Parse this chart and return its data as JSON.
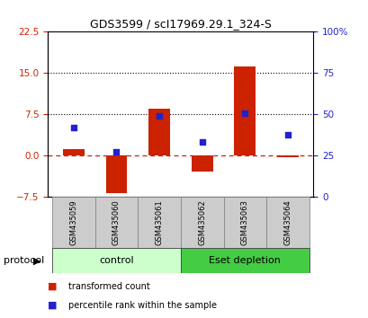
{
  "title": "GDS3599 / scI17969.29.1_324-S",
  "categories": [
    "GSM435059",
    "GSM435060",
    "GSM435061",
    "GSM435062",
    "GSM435063",
    "GSM435064"
  ],
  "transformed_counts": [
    1.2,
    -6.8,
    8.5,
    -2.8,
    16.2,
    -0.2
  ],
  "percentile_ranks": [
    5.2,
    0.8,
    7.2,
    2.5,
    7.8,
    3.8
  ],
  "left_ylim": [
    -7.5,
    22.5
  ],
  "right_ylim": [
    0,
    100
  ],
  "left_yticks": [
    -7.5,
    0,
    7.5,
    15,
    22.5
  ],
  "right_yticks": [
    0,
    25,
    50,
    75,
    100
  ],
  "right_yticklabels": [
    "0",
    "25",
    "50",
    "75",
    "100%"
  ],
  "hlines": [
    7.5,
    15.0
  ],
  "dashed_hline": 0,
  "bar_color": "#cc2200",
  "square_color": "#2222cc",
  "control_label": "control",
  "esetdepletion_label": "Eset depletion",
  "protocol_label": "protocol",
  "legend_bar_label": "transformed count",
  "legend_sq_label": "percentile rank within the sample",
  "control_color": "#ccffcc",
  "esetdepletion_color": "#44cc44",
  "label_area_color": "#cccccc",
  "bar_width": 0.5,
  "xlim": [
    -0.6,
    5.6
  ]
}
